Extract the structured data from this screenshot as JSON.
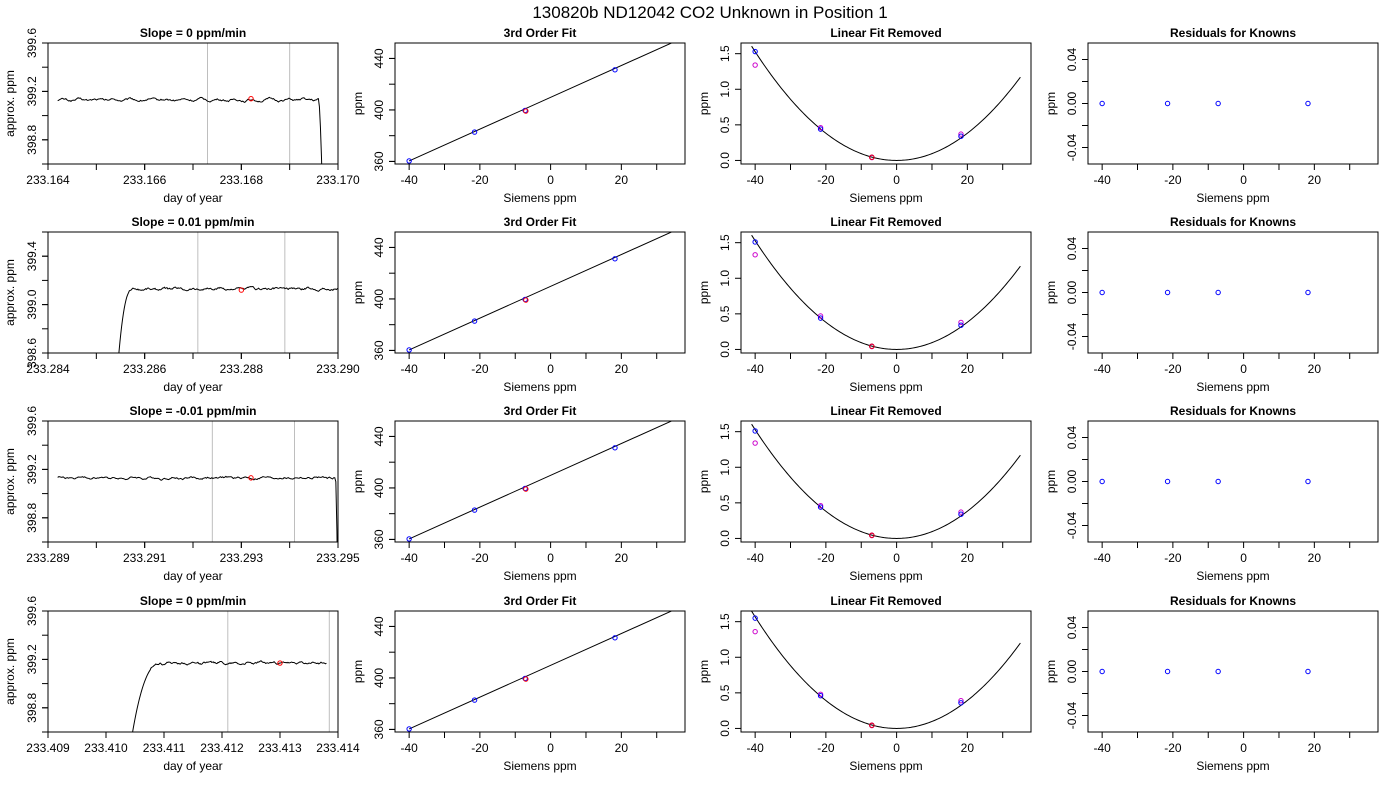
{
  "figure": {
    "title": "130820b      ND12042    CO2 Unknown in Position  1"
  },
  "colors": {
    "known_points": "#0000ff",
    "first_fit_points": "#cc00cc",
    "unknown_point": "#ff0000",
    "vertical_markers": "#bebebe",
    "curve": "#000000"
  },
  "chart_data": [
    {
      "type": "line",
      "panel": "trace-1",
      "title": "Slope =  0  ppm/min",
      "xlabel": "day of year",
      "ylabel": "approx. ppm",
      "xlim": [
        233.164,
        233.17
      ],
      "ylim": [
        398.6,
        399.6
      ],
      "xticks": [
        233.164,
        233.166,
        233.168,
        233.17
      ],
      "xtick_labels": [
        "233.164",
        "233.166",
        "233.168",
        "233.170"
      ],
      "yticks": [
        398.8,
        399.2,
        399.6
      ],
      "ytick_labels": [
        "398.8",
        "399.2",
        "399.6"
      ],
      "trace": {
        "x_start": 233.1642,
        "x_end": 233.1697,
        "level": 399.13,
        "noise": 0.012,
        "rise_end": null,
        "drop_start": 233.1696
      },
      "markers": [
        233.1673,
        233.169
      ],
      "highlight": {
        "x": 233.1682,
        "y": 399.14
      }
    },
    {
      "type": "scatter",
      "panel": "fit-1",
      "title": "3rd Order Fit",
      "xlabel": "Siemens ppm",
      "ylabel": "ppm",
      "xlim": [
        -44,
        38
      ],
      "ylim": [
        358,
        452
      ],
      "xticks": [
        -40,
        -20,
        0,
        20
      ],
      "xtick_labels": [
        "-40",
        "-20",
        "0",
        "20"
      ],
      "yticks": [
        360,
        400,
        440
      ],
      "ytick_labels": [
        "360",
        "400",
        "440"
      ],
      "line": {
        "x1": -40,
        "y1": 360.4,
        "x2": 35,
        "y2": 453.0
      },
      "knowns": {
        "x": [
          -40,
          -21.5,
          -7.2,
          18.2
        ],
        "y": [
          360.4,
          382.8,
          399.6,
          431.2
        ]
      },
      "unknown": {
        "x": -7.0,
        "y": 399.1
      }
    },
    {
      "type": "scatter",
      "panel": "resid-1",
      "title": "Linear Fit Removed",
      "xlabel": "Siemens ppm",
      "ylabel": "ppm",
      "xlim": [
        -44,
        38
      ],
      "ylim": [
        -0.05,
        1.65
      ],
      "xticks": [
        -40,
        -20,
        0,
        20
      ],
      "xtick_labels": [
        "-40",
        "-20",
        "0",
        "20"
      ],
      "yticks": [
        0.0,
        0.5,
        1.0,
        1.5
      ],
      "ytick_labels": [
        "0.0",
        "0.5",
        "1.0",
        "1.5"
      ],
      "curve": {
        "a": 0.000955,
        "b": 0.0,
        "c": 0.0
      },
      "knowns": {
        "x": [
          -40,
          -21.5,
          -7.0,
          18.2
        ],
        "y": [
          1.53,
          0.44,
          0.045,
          0.34
        ]
      },
      "first_fit": {
        "x": [
          -40,
          -21.5,
          -7.0,
          18.2
        ],
        "y": [
          1.34,
          0.46,
          0.04,
          0.37
        ]
      },
      "unknown": {
        "x": -7.0,
        "y": 0.045
      }
    },
    {
      "type": "scatter",
      "panel": "knowns-1",
      "title": "Residuals for Knowns",
      "xlabel": "Siemens ppm",
      "ylabel": "ppm",
      "xlim": [
        -44,
        38
      ],
      "ylim": [
        -0.055,
        0.055
      ],
      "xticks": [
        -40,
        -20,
        0,
        20
      ],
      "xtick_labels": [
        "-40",
        "-20",
        "0",
        "20"
      ],
      "yticks": [
        -0.04,
        0.0,
        0.04
      ],
      "ytick_labels": [
        "-0.04",
        "0.00",
        "0.04"
      ],
      "knowns": {
        "x": [
          -40,
          -21.5,
          -7.2,
          18.2
        ],
        "y": [
          0,
          0,
          0,
          0
        ]
      }
    },
    {
      "type": "line",
      "panel": "trace-2",
      "title": "Slope =  0.01  ppm/min",
      "xlabel": "day of year",
      "ylabel": "approx. ppm",
      "xlim": [
        233.284,
        233.29
      ],
      "ylim": [
        398.6,
        399.6
      ],
      "xticks": [
        233.284,
        233.286,
        233.288,
        233.29
      ],
      "xtick_labels": [
        "233.284",
        "233.286",
        "233.288",
        "233.290"
      ],
      "yticks": [
        398.6,
        399.0,
        399.4
      ],
      "ytick_labels": [
        "398.6",
        "399.0",
        "399.4"
      ],
      "trace": {
        "x_start": 233.2854,
        "x_end": 233.29,
        "level": 399.13,
        "noise": 0.012,
        "rise_end": 233.28575,
        "drop_start": null
      },
      "markers": [
        233.2871,
        233.2889
      ],
      "highlight": {
        "x": 233.288,
        "y": 399.12
      }
    },
    {
      "type": "scatter",
      "panel": "fit-2",
      "title": "3rd Order Fit",
      "xlabel": "Siemens ppm",
      "ylabel": "ppm",
      "xlim": [
        -44,
        38
      ],
      "ylim": [
        358,
        452
      ],
      "xticks": [
        -40,
        -20,
        0,
        20
      ],
      "xtick_labels": [
        "-40",
        "-20",
        "0",
        "20"
      ],
      "yticks": [
        360,
        400,
        440
      ],
      "ytick_labels": [
        "360",
        "400",
        "440"
      ],
      "line": {
        "x1": -40,
        "y1": 360.4,
        "x2": 35,
        "y2": 453.0
      },
      "knowns": {
        "x": [
          -40,
          -21.5,
          -7.2,
          18.2
        ],
        "y": [
          360.4,
          382.8,
          399.6,
          431.2
        ]
      },
      "unknown": {
        "x": -7.0,
        "y": 399.1
      }
    },
    {
      "type": "scatter",
      "panel": "resid-2",
      "title": "Linear Fit Removed",
      "xlabel": "Siemens ppm",
      "ylabel": "ppm",
      "xlim": [
        -44,
        38
      ],
      "ylim": [
        -0.05,
        1.65
      ],
      "xticks": [
        -40,
        -20,
        0,
        20
      ],
      "xtick_labels": [
        "-40",
        "-20",
        "0",
        "20"
      ],
      "yticks": [
        0.0,
        0.5,
        1.0,
        1.5
      ],
      "ytick_labels": [
        "0.0",
        "0.5",
        "1.0",
        "1.5"
      ],
      "curve": {
        "a": 0.000955,
        "b": 0.0,
        "c": 0.0
      },
      "knowns": {
        "x": [
          -40,
          -21.5,
          -7.0,
          18.2
        ],
        "y": [
          1.51,
          0.44,
          0.045,
          0.34
        ]
      },
      "first_fit": {
        "x": [
          -40,
          -21.5,
          -7.0,
          18.2
        ],
        "y": [
          1.33,
          0.47,
          0.04,
          0.38
        ]
      },
      "unknown": {
        "x": -7.0,
        "y": 0.045
      }
    },
    {
      "type": "scatter",
      "panel": "knowns-2",
      "title": "Residuals for Knowns",
      "xlabel": "Siemens ppm",
      "ylabel": "ppm",
      "xlim": [
        -44,
        38
      ],
      "ylim": [
        -0.055,
        0.055
      ],
      "xticks": [
        -40,
        -20,
        0,
        20
      ],
      "xtick_labels": [
        "-40",
        "-20",
        "0",
        "20"
      ],
      "yticks": [
        -0.04,
        0.0,
        0.04
      ],
      "ytick_labels": [
        "-0.04",
        "0.00",
        "0.04"
      ],
      "knowns": {
        "x": [
          -40,
          -21.5,
          -7.2,
          18.2
        ],
        "y": [
          0,
          0,
          0,
          0
        ]
      }
    },
    {
      "type": "line",
      "panel": "trace-3",
      "title": "Slope =  -0.01  ppm/min",
      "xlabel": "day of year",
      "ylabel": "approx. ppm",
      "xlim": [
        233.289,
        233.295
      ],
      "ylim": [
        398.6,
        399.6
      ],
      "xticks": [
        233.289,
        233.291,
        233.293,
        233.295
      ],
      "xtick_labels": [
        "233.289",
        "233.291",
        "233.293",
        "233.295"
      ],
      "yticks": [
        398.8,
        399.2,
        399.6
      ],
      "ytick_labels": [
        "398.8",
        "399.2",
        "399.6"
      ],
      "trace": {
        "x_start": 233.2892,
        "x_end": 233.295,
        "level": 399.13,
        "noise": 0.012,
        "rise_end": null,
        "drop_start": 233.29495
      },
      "markers": [
        233.2924,
        233.2941
      ],
      "highlight": {
        "x": 233.2932,
        "y": 399.13
      }
    },
    {
      "type": "scatter",
      "panel": "fit-3",
      "title": "3rd Order Fit",
      "xlabel": "Siemens ppm",
      "ylabel": "ppm",
      "xlim": [
        -44,
        38
      ],
      "ylim": [
        358,
        452
      ],
      "xticks": [
        -40,
        -20,
        0,
        20
      ],
      "xtick_labels": [
        "-40",
        "-20",
        "0",
        "20"
      ],
      "yticks": [
        360,
        400,
        440
      ],
      "ytick_labels": [
        "360",
        "400",
        "440"
      ],
      "line": {
        "x1": -40,
        "y1": 360.4,
        "x2": 35,
        "y2": 453.0
      },
      "knowns": {
        "x": [
          -40,
          -21.5,
          -7.2,
          18.2
        ],
        "y": [
          360.4,
          382.8,
          399.6,
          431.2
        ]
      },
      "unknown": {
        "x": -7.0,
        "y": 399.1
      }
    },
    {
      "type": "scatter",
      "panel": "resid-3",
      "title": "Linear Fit Removed",
      "xlabel": "Siemens ppm",
      "ylabel": "ppm",
      "xlim": [
        -44,
        38
      ],
      "ylim": [
        -0.05,
        1.65
      ],
      "xticks": [
        -40,
        -20,
        0,
        20
      ],
      "xtick_labels": [
        "-40",
        "-20",
        "0",
        "20"
      ],
      "yticks": [
        0.0,
        0.5,
        1.0,
        1.5
      ],
      "ytick_labels": [
        "0.0",
        "0.5",
        "1.0",
        "1.5"
      ],
      "curve": {
        "a": 0.000955,
        "b": 0.0,
        "c": 0.0
      },
      "knowns": {
        "x": [
          -40,
          -21.5,
          -7.0,
          18.2
        ],
        "y": [
          1.51,
          0.44,
          0.045,
          0.34
        ]
      },
      "first_fit": {
        "x": [
          -40,
          -21.5,
          -7.0,
          18.2
        ],
        "y": [
          1.34,
          0.46,
          0.04,
          0.37
        ]
      },
      "unknown": {
        "x": -7.0,
        "y": 0.045
      }
    },
    {
      "type": "scatter",
      "panel": "knowns-3",
      "title": "Residuals for Knowns",
      "xlabel": "Siemens ppm",
      "ylabel": "ppm",
      "xlim": [
        -44,
        38
      ],
      "ylim": [
        -0.055,
        0.055
      ],
      "xticks": [
        -40,
        -20,
        0,
        20
      ],
      "xtick_labels": [
        "-40",
        "-20",
        "0",
        "20"
      ],
      "yticks": [
        -0.04,
        0.0,
        0.04
      ],
      "ytick_labels": [
        "-0.04",
        "0.00",
        "0.04"
      ],
      "knowns": {
        "x": [
          -40,
          -21.5,
          -7.2,
          18.2
        ],
        "y": [
          0,
          0,
          0,
          0
        ]
      }
    },
    {
      "type": "line",
      "panel": "trace-4",
      "title": "Slope =  0  ppm/min",
      "xlabel": "day of year",
      "ylabel": "approx. ppm",
      "xlim": [
        233.409,
        233.414
      ],
      "ylim": [
        398.6,
        399.6
      ],
      "xticks": [
        233.409,
        233.41,
        233.411,
        233.412,
        233.413,
        233.414
      ],
      "xtick_labels": [
        "233.409",
        "233.410",
        "233.411",
        "233.412",
        "233.413",
        "233.414"
      ],
      "yticks": [
        398.8,
        399.2,
        399.6
      ],
      "ytick_labels": [
        "398.8",
        "399.2",
        "399.6"
      ],
      "trace": {
        "x_start": 233.41035,
        "x_end": 233.4138,
        "level": 399.17,
        "noise": 0.01,
        "rise_end": 233.41095,
        "drop_start": null
      },
      "markers": [
        233.4121,
        233.41385
      ],
      "highlight": {
        "x": 233.413,
        "y": 399.17
      }
    },
    {
      "type": "scatter",
      "panel": "fit-4",
      "title": "3rd Order Fit",
      "xlabel": "Siemens ppm",
      "ylabel": "ppm",
      "xlim": [
        -44,
        38
      ],
      "ylim": [
        358,
        452
      ],
      "xticks": [
        -40,
        -20,
        0,
        20
      ],
      "xtick_labels": [
        "-40",
        "-20",
        "0",
        "20"
      ],
      "yticks": [
        360,
        400,
        440
      ],
      "ytick_labels": [
        "360",
        "400",
        "440"
      ],
      "line": {
        "x1": -40,
        "y1": 360.4,
        "x2": 35,
        "y2": 453.0
      },
      "knowns": {
        "x": [
          -40,
          -21.5,
          -7.2,
          18.2
        ],
        "y": [
          360.4,
          382.8,
          399.6,
          431.2
        ]
      },
      "unknown": {
        "x": -7.0,
        "y": 399.1
      }
    },
    {
      "type": "scatter",
      "panel": "resid-4",
      "title": "Linear Fit Removed",
      "xlabel": "Siemens ppm",
      "ylabel": "ppm",
      "xlim": [
        -44,
        38
      ],
      "ylim": [
        -0.05,
        1.65
      ],
      "xticks": [
        -40,
        -20,
        0,
        20
      ],
      "xtick_labels": [
        "-40",
        "-20",
        "0",
        "20"
      ],
      "yticks": [
        0.0,
        0.5,
        1.0,
        1.5
      ],
      "ytick_labels": [
        "0.0",
        "0.5",
        "1.0",
        "1.5"
      ],
      "curve": {
        "a": 0.00098,
        "b": 0.0,
        "c": 0.0
      },
      "knowns": {
        "x": [
          -40,
          -21.5,
          -7.0,
          18.2
        ],
        "y": [
          1.55,
          0.46,
          0.045,
          0.36
        ]
      },
      "first_fit": {
        "x": [
          -40,
          -21.5,
          -7.0,
          18.2
        ],
        "y": [
          1.36,
          0.48,
          0.04,
          0.39
        ]
      },
      "unknown": {
        "x": -7.0,
        "y": 0.045
      }
    },
    {
      "type": "scatter",
      "panel": "knowns-4",
      "title": "Residuals for Knowns",
      "xlabel": "Siemens ppm",
      "ylabel": "ppm",
      "xlim": [
        -44,
        38
      ],
      "ylim": [
        -0.055,
        0.055
      ],
      "xticks": [
        -40,
        -20,
        0,
        20
      ],
      "xtick_labels": [
        "-40",
        "-20",
        "0",
        "20"
      ],
      "yticks": [
        -0.04,
        0.0,
        0.04
      ],
      "ytick_labels": [
        "-0.04",
        "0.00",
        "0.04"
      ],
      "knowns": {
        "x": [
          -40,
          -21.5,
          -7.2,
          18.2
        ],
        "y": [
          0,
          0,
          0,
          0
        ]
      }
    }
  ]
}
